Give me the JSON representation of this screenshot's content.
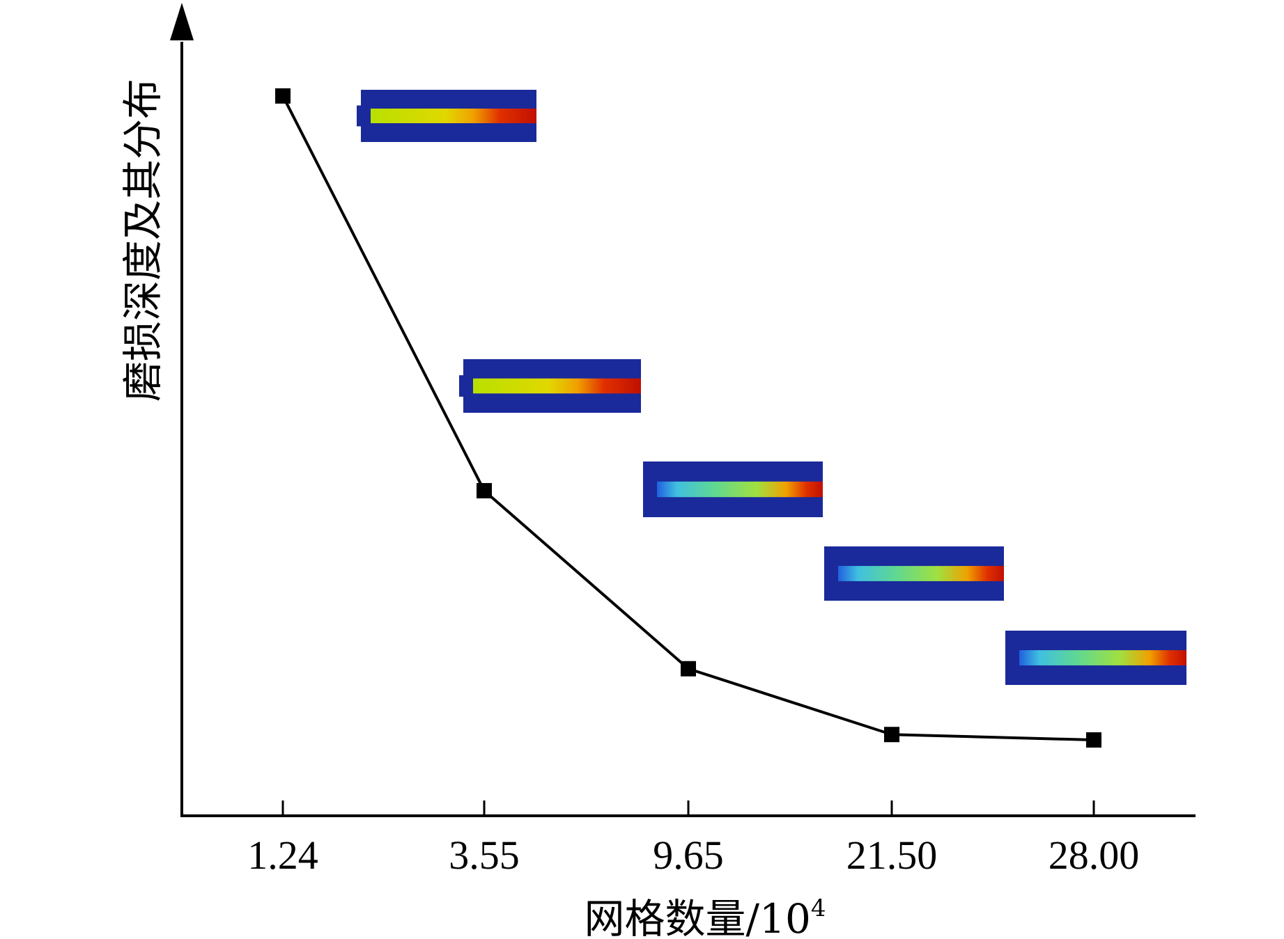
{
  "chart_data": {
    "type": "line",
    "title": "",
    "xlabel": "网格数量/10",
    "xlabel_superscript": "4",
    "ylabel": "磨损深度及其分布",
    "categories": [
      "1.24",
      "3.55",
      "9.65",
      "21.50",
      "28.00"
    ],
    "series": [
      {
        "values": [
          0.93,
          0.42,
          0.19,
          0.105,
          0.098
        ]
      }
    ],
    "ylim": [
      0,
      1
    ],
    "y_ticks_shown": false,
    "grid": false,
    "legend": "none",
    "marker": "square",
    "line_color": "#000000",
    "inset_images": [
      {
        "subject": "wear-contour",
        "at_category": "1.24",
        "style": "yellow-red"
      },
      {
        "subject": "wear-contour",
        "at_category": "3.55",
        "style": "yellow-red"
      },
      {
        "subject": "wear-contour",
        "at_category": "9.65",
        "style": "blue-green-red"
      },
      {
        "subject": "wear-contour",
        "at_category": "21.50",
        "style": "blue-green-red"
      },
      {
        "subject": "wear-contour",
        "at_category": "28.00",
        "style": "blue-green-red"
      }
    ]
  }
}
